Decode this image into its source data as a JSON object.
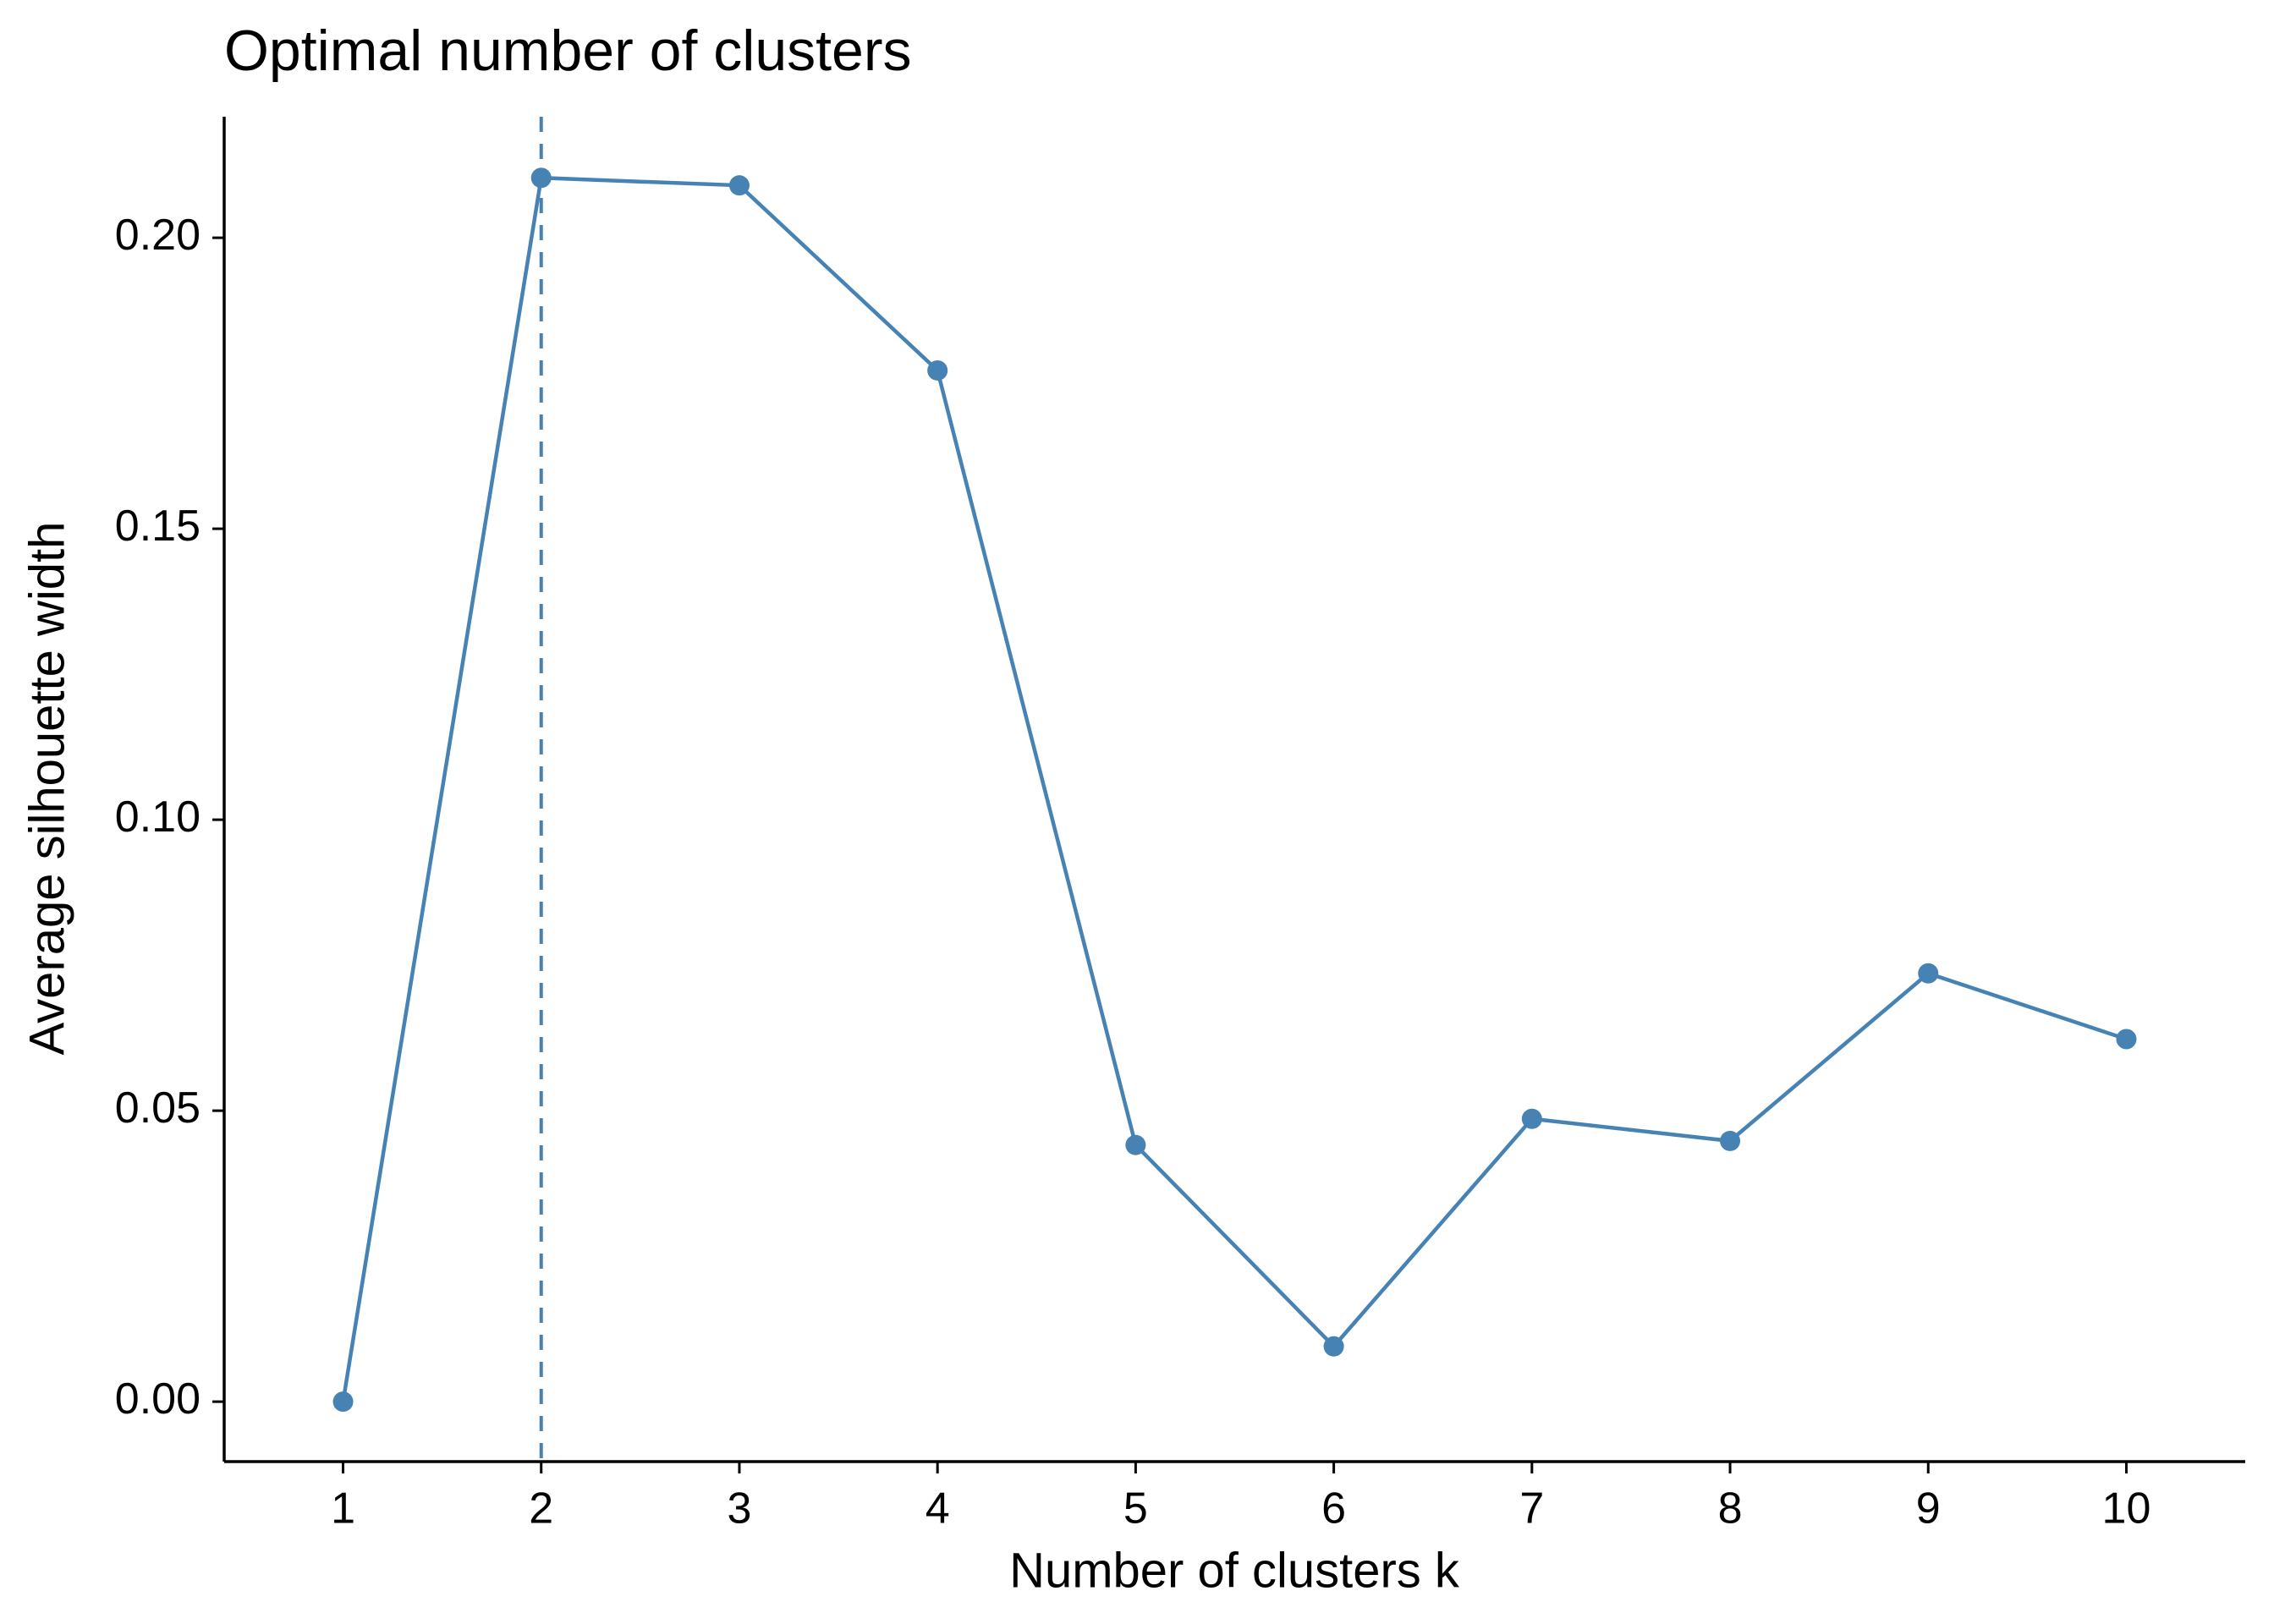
{
  "chart_data": {
    "type": "line",
    "title": "Optimal number of clusters",
    "x_label": "Number of clusters k",
    "y_label": "Average silhouette width",
    "x": [
      1,
      2,
      3,
      4,
      5,
      6,
      7,
      8,
      9,
      10
    ],
    "values": [
      0,
      0.2103,
      0.209,
      0.1772,
      0.0441,
      0.0095,
      0.0486,
      0.0448,
      0.0736,
      0.0623
    ],
    "color": "#4682b4",
    "vline_x": 2,
    "xlim": [
      0.4,
      10.6
    ],
    "xticks": [
      1,
      2,
      3,
      4,
      5,
      6,
      7,
      8,
      9,
      10
    ],
    "ylim": [
      -0.0103,
      0.2208
    ],
    "yticks": [
      {
        "value": 0,
        "label": "0.00"
      },
      {
        "value": 0.05,
        "label": "0.05"
      },
      {
        "value": 0.1,
        "label": "0.10"
      },
      {
        "value": 0.15,
        "label": "0.15"
      },
      {
        "value": 0.2,
        "label": "0.20"
      }
    ],
    "grid": false
  }
}
